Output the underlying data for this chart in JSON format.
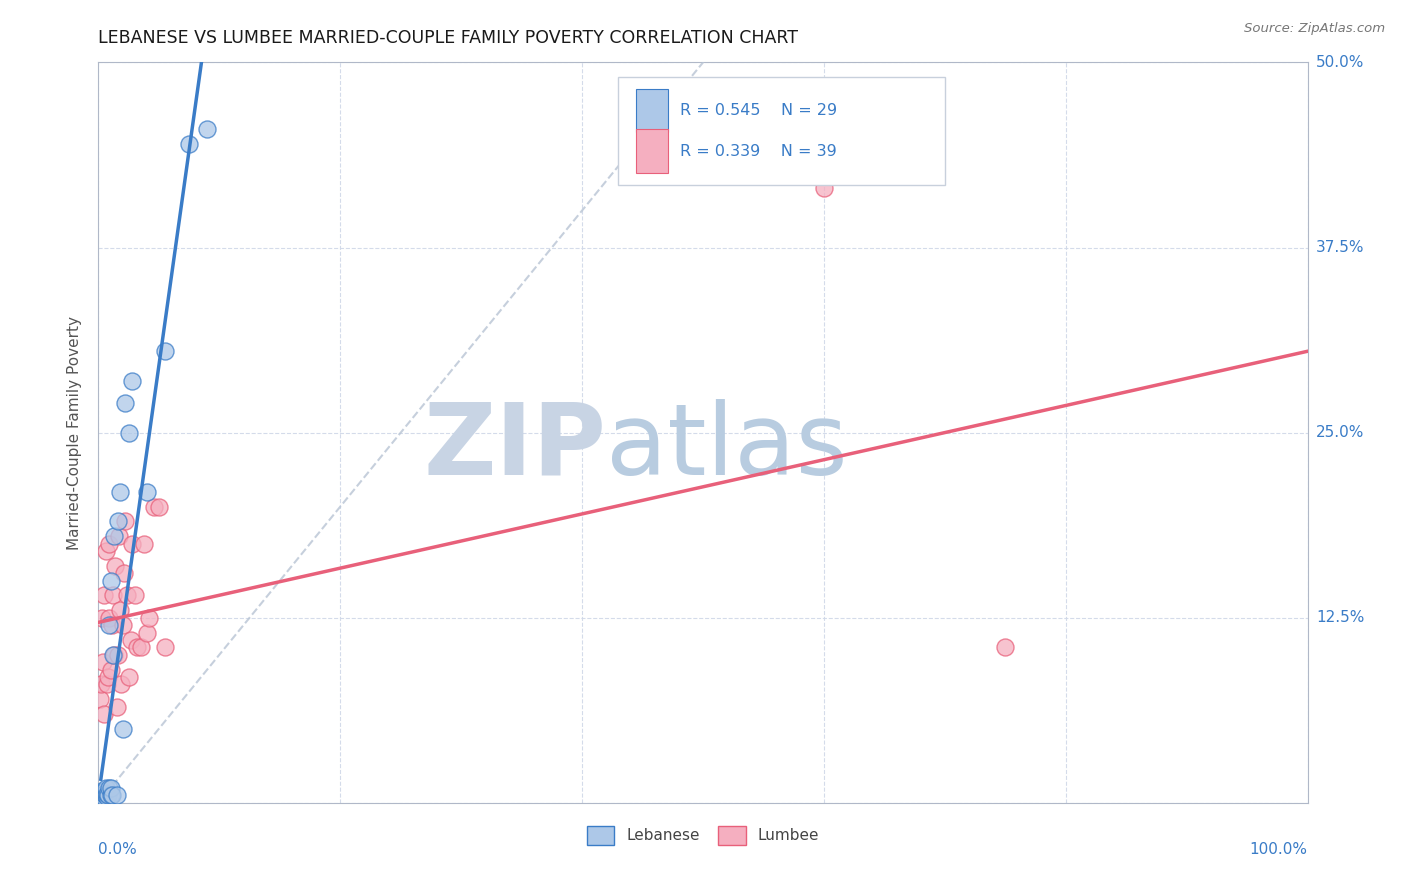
{
  "title": "LEBANESE VS LUMBEE MARRIED-COUPLE FAMILY POVERTY CORRELATION CHART",
  "source": "Source: ZipAtlas.com",
  "ylabel": "Married-Couple Family Poverty",
  "yticks": [
    0.0,
    0.125,
    0.25,
    0.375,
    0.5
  ],
  "ytick_labels": [
    "",
    "12.5%",
    "25.0%",
    "37.5%",
    "50.0%"
  ],
  "xticks": [
    0.0,
    0.2,
    0.4,
    0.6,
    0.8,
    1.0
  ],
  "legend_R1": "R = 0.545",
  "legend_N1": "N = 29",
  "legend_R2": "R = 0.339",
  "legend_N2": "N = 39",
  "lebanese_color": "#adc8e8",
  "lumbee_color": "#f5afc0",
  "lebanese_line_color": "#3a7cc7",
  "lumbee_line_color": "#e8607a",
  "diagonal_color": "#b8c4d4",
  "lebanese_x": [
    0.002,
    0.003,
    0.003,
    0.004,
    0.004,
    0.005,
    0.005,
    0.006,
    0.006,
    0.007,
    0.007,
    0.008,
    0.009,
    0.009,
    0.01,
    0.01,
    0.01,
    0.011,
    0.012,
    0.013,
    0.015,
    0.016,
    0.018,
    0.02,
    0.022,
    0.025,
    0.028,
    0.04,
    0.055,
    0.075,
    0.09
  ],
  "lebanese_y": [
    0.003,
    0.005,
    0.008,
    0.003,
    0.007,
    0.004,
    0.006,
    0.005,
    0.01,
    0.004,
    0.006,
    0.005,
    0.01,
    0.12,
    0.005,
    0.01,
    0.15,
    0.005,
    0.1,
    0.18,
    0.005,
    0.19,
    0.21,
    0.05,
    0.27,
    0.25,
    0.285,
    0.21,
    0.305,
    0.445,
    0.455
  ],
  "lumbee_x": [
    0.001,
    0.002,
    0.003,
    0.004,
    0.005,
    0.005,
    0.006,
    0.007,
    0.008,
    0.009,
    0.009,
    0.01,
    0.011,
    0.012,
    0.013,
    0.014,
    0.015,
    0.016,
    0.017,
    0.018,
    0.019,
    0.02,
    0.021,
    0.022,
    0.024,
    0.025,
    0.027,
    0.028,
    0.03,
    0.032,
    0.035,
    0.038,
    0.04,
    0.042,
    0.046,
    0.05,
    0.055,
    0.6,
    0.75
  ],
  "lumbee_y": [
    0.07,
    0.08,
    0.125,
    0.095,
    0.06,
    0.14,
    0.17,
    0.08,
    0.085,
    0.125,
    0.175,
    0.09,
    0.12,
    0.14,
    0.1,
    0.16,
    0.065,
    0.1,
    0.18,
    0.13,
    0.08,
    0.12,
    0.155,
    0.19,
    0.14,
    0.085,
    0.11,
    0.175,
    0.14,
    0.105,
    0.105,
    0.175,
    0.115,
    0.125,
    0.2,
    0.2,
    0.105,
    0.415,
    0.105
  ],
  "xlim": [
    0.0,
    1.0
  ],
  "ylim": [
    0.0,
    0.5
  ],
  "watermark_zip": "ZIP",
  "watermark_atlas": "atlas"
}
